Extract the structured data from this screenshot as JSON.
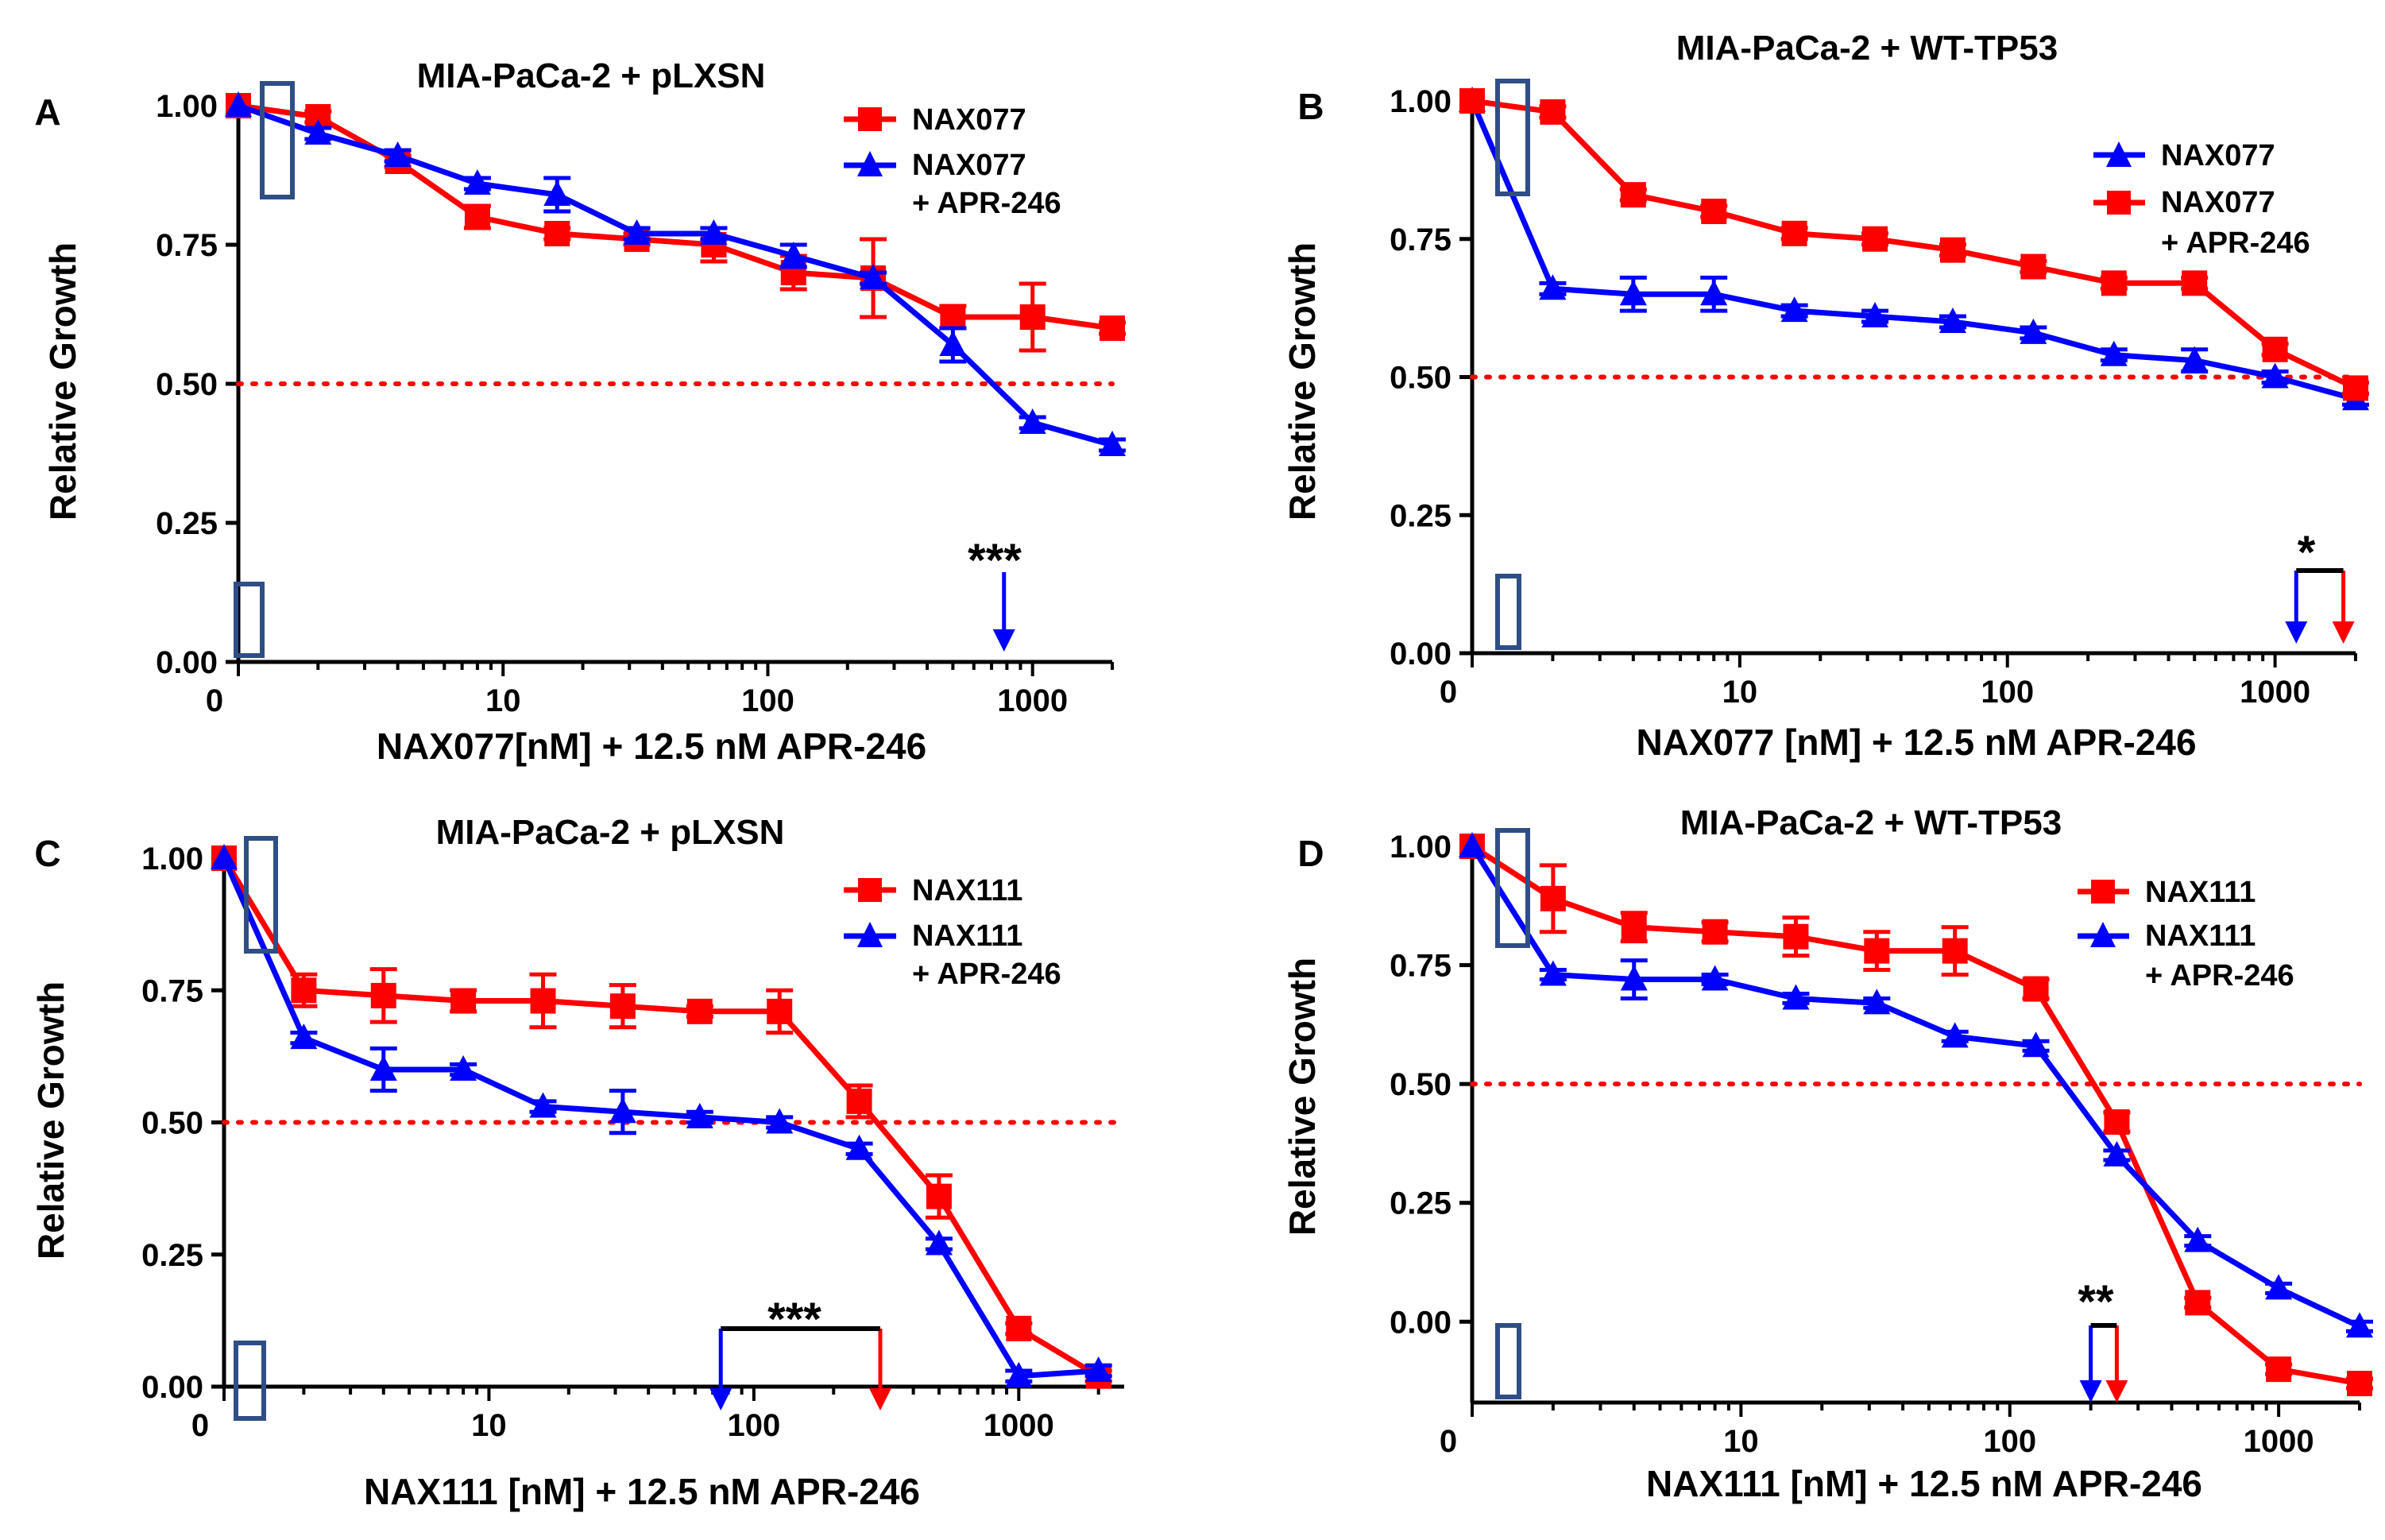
{
  "colors": {
    "red": "#FF0000",
    "blue": "#0000FF",
    "marker_box": "#2E4E86",
    "axis": "#000000"
  },
  "chart_data": [
    {
      "panel": "A",
      "type": "line",
      "title": "MIA-PaCa-2 + pLXSN",
      "xlabel": "NAX077[nM] + 12.5 nM APR-246",
      "ylabel": "Relative Growth",
      "xscale": "log",
      "xlim": [
        1,
        2000
      ],
      "ylim": [
        0,
        1.0
      ],
      "x_ticks": [
        {
          "v": 1,
          "label": "0"
        },
        {
          "v": 10,
          "label": "10"
        },
        {
          "v": 100,
          "label": "100"
        },
        {
          "v": 1000,
          "label": "1000"
        }
      ],
      "y_ticks": [
        {
          "v": 0,
          "label": "0.00"
        },
        {
          "v": 0.25,
          "label": "0.25"
        },
        {
          "v": 0.5,
          "label": "0.50"
        },
        {
          "v": 0.75,
          "label": "0.75"
        },
        {
          "v": 1.0,
          "label": "1.00"
        }
      ],
      "reference_line": 0.5,
      "legend": {
        "position": "top-right",
        "entries": [
          "NAX077",
          "NAX077",
          "+ APR-246"
        ]
      },
      "series": [
        {
          "name": "NAX077",
          "color": "red",
          "marker": "square",
          "x": [
            1,
            2,
            4,
            8,
            16,
            32,
            62.5,
            125,
            250,
            500,
            1000,
            2000
          ],
          "y": [
            1.0,
            0.98,
            0.9,
            0.8,
            0.77,
            0.76,
            0.75,
            0.7,
            0.69,
            0.62,
            0.62,
            0.6
          ],
          "err": [
            0,
            0.01,
            0.01,
            0.02,
            0.01,
            0.01,
            0.03,
            0.03,
            0.07,
            0.02,
            0.06,
            0.01
          ]
        },
        {
          "name": "NAX077 + APR-246",
          "color": "blue",
          "marker": "triangle",
          "x": [
            1,
            2,
            4,
            8,
            16,
            32,
            62.5,
            125,
            250,
            500,
            1000,
            2000
          ],
          "y": [
            1.0,
            0.95,
            0.91,
            0.86,
            0.84,
            0.77,
            0.77,
            0.73,
            0.69,
            0.57,
            0.43,
            0.39
          ],
          "err": [
            0,
            0.01,
            0.01,
            0.01,
            0.03,
            0.01,
            0.01,
            0.02,
            0.01,
            0.03,
            0.01,
            0.01
          ]
        }
      ],
      "significance": {
        "label": "***",
        "arrows": [
          {
            "x": 780,
            "color": "blue"
          }
        ]
      }
    },
    {
      "panel": "B",
      "type": "line",
      "title": "MIA-PaCa-2 + WT-TP53",
      "xlabel": "NAX077 [nM] + 12.5 nM APR-246",
      "ylabel": "Relative Growth",
      "xscale": "log",
      "xlim": [
        1,
        2000
      ],
      "ylim": [
        0,
        1.0
      ],
      "x_ticks": [
        {
          "v": 1,
          "label": "0"
        },
        {
          "v": 10,
          "label": "10"
        },
        {
          "v": 100,
          "label": "100"
        },
        {
          "v": 1000,
          "label": "1000"
        }
      ],
      "y_ticks": [
        {
          "v": 0,
          "label": "0.00"
        },
        {
          "v": 0.25,
          "label": "0.25"
        },
        {
          "v": 0.5,
          "label": "0.50"
        },
        {
          "v": 0.75,
          "label": "0.75"
        },
        {
          "v": 1.0,
          "label": "1.00"
        }
      ],
      "reference_line": 0.5,
      "legend": {
        "position": "top-right",
        "entries": [
          "NAX077",
          "NAX077",
          "+ APR-246"
        ]
      },
      "series": [
        {
          "name": "NAX077",
          "color": "blue",
          "marker": "triangle",
          "x": [
            1,
            2,
            4,
            8,
            16,
            32,
            62.5,
            125,
            250,
            500,
            1000,
            2000
          ],
          "y": [
            1.0,
            0.66,
            0.65,
            0.65,
            0.62,
            0.61,
            0.6,
            0.58,
            0.54,
            0.53,
            0.5,
            0.46
          ],
          "err": [
            0,
            0.01,
            0.03,
            0.03,
            0.01,
            0.01,
            0.01,
            0.01,
            0.01,
            0.02,
            0.01,
            0.01
          ]
        },
        {
          "name": "NAX077 + APR-246",
          "color": "red",
          "marker": "square",
          "x": [
            1,
            2,
            4,
            8,
            16,
            32,
            62.5,
            125,
            250,
            500,
            1000,
            2000
          ],
          "y": [
            1.0,
            0.98,
            0.83,
            0.8,
            0.76,
            0.75,
            0.73,
            0.7,
            0.67,
            0.67,
            0.55,
            0.48
          ],
          "err": [
            0,
            0.01,
            0.01,
            0.01,
            0.01,
            0.01,
            0.01,
            0.01,
            0.01,
            0.01,
            0.01,
            0.01
          ]
        }
      ],
      "significance": {
        "label": "*",
        "arrows": [
          {
            "x": 1200,
            "color": "blue"
          },
          {
            "x": 1800,
            "color": "red"
          }
        ]
      }
    },
    {
      "panel": "C",
      "type": "line",
      "title": "MIA-PaCa-2 + pLXSN",
      "xlabel": "NAX111 [nM] + 12.5 nM APR-246",
      "ylabel": "Relative Growth",
      "xscale": "log",
      "xlim": [
        1,
        2500
      ],
      "ylim": [
        0,
        1.0
      ],
      "x_ticks": [
        {
          "v": 1,
          "label": "0"
        },
        {
          "v": 10,
          "label": "10"
        },
        {
          "v": 100,
          "label": "100"
        },
        {
          "v": 1000,
          "label": "1000"
        }
      ],
      "y_ticks": [
        {
          "v": 0,
          "label": "0.00"
        },
        {
          "v": 0.25,
          "label": "0.25"
        },
        {
          "v": 0.5,
          "label": "0.50"
        },
        {
          "v": 0.75,
          "label": "0.75"
        },
        {
          "v": 1.0,
          "label": "1.00"
        }
      ],
      "reference_line": 0.5,
      "legend": {
        "position": "top-right",
        "entries": [
          "NAX111",
          "NAX111",
          "+ APR-246"
        ]
      },
      "series": [
        {
          "name": "NAX111",
          "color": "red",
          "marker": "square",
          "x": [
            1,
            2,
            4,
            8,
            16,
            32,
            62.5,
            125,
            250,
            500,
            1000,
            2000
          ],
          "y": [
            1.0,
            0.75,
            0.74,
            0.73,
            0.73,
            0.72,
            0.71,
            0.71,
            0.54,
            0.36,
            0.11,
            0.02
          ],
          "err": [
            0,
            0.03,
            0.05,
            0.02,
            0.05,
            0.04,
            0.01,
            0.04,
            0.03,
            0.04,
            0.01,
            0.01
          ]
        },
        {
          "name": "NAX111 + APR-246",
          "color": "blue",
          "marker": "triangle",
          "x": [
            1,
            2,
            4,
            8,
            16,
            32,
            62.5,
            125,
            250,
            500,
            1000,
            2000
          ],
          "y": [
            1.0,
            0.66,
            0.6,
            0.6,
            0.53,
            0.52,
            0.51,
            0.5,
            0.45,
            0.27,
            0.02,
            0.03
          ],
          "err": [
            0,
            0.01,
            0.04,
            0.01,
            0.01,
            0.04,
            0.01,
            0.01,
            0.01,
            0.01,
            0.01,
            0.01
          ]
        }
      ],
      "significance": {
        "label": "***",
        "arrows": [
          {
            "x": 75,
            "color": "blue"
          },
          {
            "x": 300,
            "color": "red"
          }
        ]
      }
    },
    {
      "panel": "D",
      "type": "line",
      "title": "MIA-PaCa-2 + WT-TP53",
      "xlabel": "NAX111 [nM] + 12.5 nM APR-246",
      "ylabel": "Relative Growth",
      "xscale": "log",
      "xlim": [
        1,
        2000
      ],
      "ylim": [
        -0.17,
        1.0
      ],
      "x_ticks": [
        {
          "v": 1,
          "label": "0"
        },
        {
          "v": 10,
          "label": "10"
        },
        {
          "v": 100,
          "label": "100"
        },
        {
          "v": 1000,
          "label": "1000"
        }
      ],
      "y_ticks": [
        {
          "v": 0,
          "label": "0.00"
        },
        {
          "v": 0.25,
          "label": "0.25"
        },
        {
          "v": 0.5,
          "label": "0.50"
        },
        {
          "v": 0.75,
          "label": "0.75"
        },
        {
          "v": 1.0,
          "label": "1.00"
        }
      ],
      "reference_line": 0.5,
      "legend": {
        "position": "top-right",
        "entries": [
          "NAX111",
          "NAX111",
          "+ APR-246"
        ]
      },
      "series": [
        {
          "name": "NAX111",
          "color": "red",
          "marker": "square",
          "x": [
            1,
            2,
            4,
            8,
            16,
            32,
            62.5,
            125,
            250,
            500,
            1000,
            2000
          ],
          "y": [
            1.0,
            0.89,
            0.83,
            0.82,
            0.81,
            0.78,
            0.78,
            0.7,
            0.42,
            0.04,
            -0.1,
            -0.13
          ],
          "err": [
            0,
            0.07,
            0.03,
            0.02,
            0.04,
            0.04,
            0.05,
            0.02,
            0.02,
            0.01,
            0.01,
            0.01
          ]
        },
        {
          "name": "NAX111 + APR-246",
          "color": "blue",
          "marker": "triangle",
          "x": [
            1,
            2,
            4,
            8,
            16,
            32,
            62.5,
            125,
            250,
            500,
            1000,
            2000
          ],
          "y": [
            1.0,
            0.73,
            0.72,
            0.72,
            0.68,
            0.67,
            0.6,
            0.58,
            0.35,
            0.17,
            0.07,
            -0.01
          ],
          "err": [
            0,
            0.01,
            0.04,
            0.01,
            0.01,
            0.01,
            0.01,
            0.01,
            0.01,
            0.01,
            0.01,
            0.01
          ]
        }
      ],
      "significance": {
        "label": "**",
        "arrows": [
          {
            "x": 200,
            "color": "blue"
          },
          {
            "x": 250,
            "color": "red"
          }
        ]
      }
    }
  ]
}
